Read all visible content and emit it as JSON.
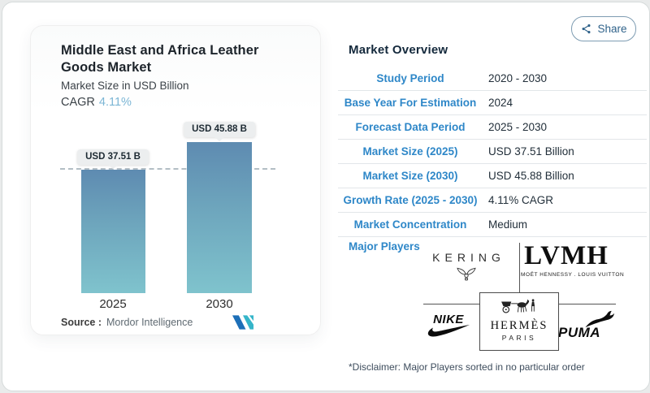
{
  "share": {
    "label": "Share",
    "icon": "share-nodes-icon"
  },
  "chart_card": {
    "title": "Middle East and Africa Leather Goods Market",
    "subtitle": "Market Size in USD Billion",
    "cagr_label": "CAGR",
    "cagr_value": "4.11%",
    "source_label": "Source :",
    "source_value": "Mordor Intelligence",
    "source_logo": "mordor-intelligence-mark"
  },
  "chart_data": {
    "type": "bar",
    "categories": [
      "2025",
      "2030"
    ],
    "values": [
      37.51,
      45.88
    ],
    "value_labels": [
      "USD 37.51 B",
      "USD 45.88 B"
    ],
    "title": "Middle East and Africa Leather Goods Market",
    "ylabel": "Market Size in USD Billion",
    "cagr": "4.11%",
    "reference_line_at": 37.51,
    "grid": false,
    "bar_gradient": [
      "#5e8bb1",
      "#7fc3cd"
    ]
  },
  "overview": {
    "heading": "Market Overview",
    "rows": [
      {
        "label": "Study Period",
        "value": "2020 - 2030"
      },
      {
        "label": "Base Year For Estimation",
        "value": "2024"
      },
      {
        "label": "Forecast Data Period",
        "value": "2025 - 2030"
      },
      {
        "label": "Market Size (2025)",
        "value": "USD 37.51 Billion"
      },
      {
        "label": "Market Size (2030)",
        "value": "USD 45.88 Billion"
      },
      {
        "label": "Growth Rate (2025 - 2030)",
        "value": "4.11% CAGR"
      },
      {
        "label": "Market Concentration",
        "value": "Medium"
      }
    ],
    "major_players_label": "Major Players",
    "players": [
      "Kering",
      "LVMH",
      "Nike",
      "Hermès",
      "Puma"
    ],
    "disclaimer": "*Disclaimer: Major Players sorted in no particular order"
  },
  "logos": {
    "kering_text": "KERING",
    "lvmh_text": "LVMH",
    "lvmh_sub": "MOËT HENNESSY . LOUIS VUITTON",
    "nike_text": "NIKE",
    "hermes_text": "HERMÈS",
    "hermes_sub": "PARIS",
    "puma_text": "PUMA"
  },
  "colors": {
    "accent_blue": "#2e87c8",
    "cagr_blue": "#7cb6d5",
    "heading_navy": "#14293c",
    "share_blue": "#2f628a",
    "bar_top": "#5e8bb1",
    "bar_bottom": "#7fc3cd",
    "mordor_dark": "#1d6fb8",
    "mordor_teal": "#35b5c9"
  }
}
